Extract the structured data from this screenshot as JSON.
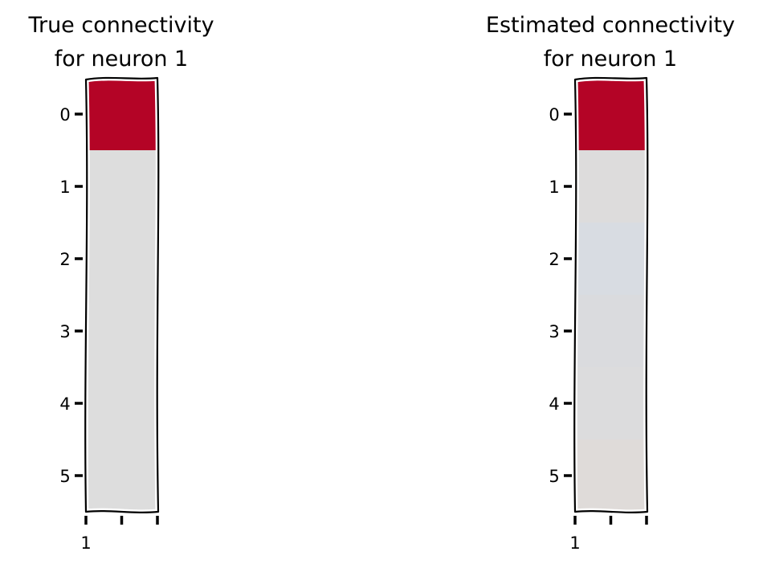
{
  "chart_data": [
    {
      "type": "heatmap",
      "title": "True connectivity\nfor neuron 1",
      "y_categories": [
        "0",
        "1",
        "2",
        "3",
        "4",
        "5"
      ],
      "x_categories": [
        "1"
      ],
      "values": [
        1.0,
        0.0,
        0.0,
        0.0,
        0.0,
        0.0
      ],
      "colors": [
        "#b40426",
        "#dddddd",
        "#dddddd",
        "#dddddd",
        "#dddddd",
        "#dddddd"
      ]
    },
    {
      "type": "heatmap",
      "title": "Estimated connectivity\nfor neuron 1",
      "y_categories": [
        "0",
        "1",
        "2",
        "3",
        "4",
        "5"
      ],
      "x_categories": [
        "1"
      ],
      "values": [
        0.98,
        0.0,
        -0.05,
        -0.03,
        -0.02,
        0.01
      ],
      "colors": [
        "#b40426",
        "#dddcdc",
        "#d8dce2",
        "#dadbde",
        "#dcdcdd",
        "#dfdbd9"
      ]
    }
  ]
}
